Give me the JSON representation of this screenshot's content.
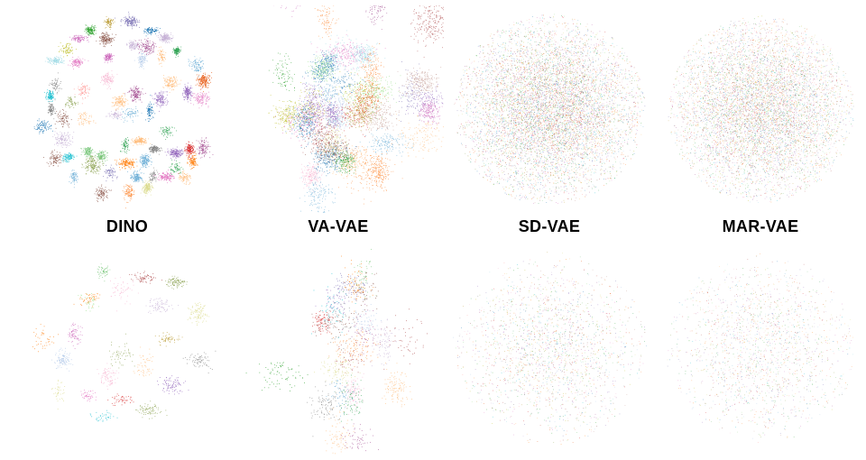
{
  "figure": {
    "background": "#ffffff",
    "palette": [
      "#1f77b4",
      "#aec7e8",
      "#ff7f0e",
      "#ffbb78",
      "#2ca02c",
      "#98df8a",
      "#d62728",
      "#ff9896",
      "#9467bd",
      "#c5b0d5",
      "#8c564b",
      "#c49c94",
      "#e377c2",
      "#f7b6d2",
      "#7f7f7f",
      "#bcbd22",
      "#dbdb8d",
      "#17becf",
      "#9edae5",
      "#e6550d",
      "#6baed6",
      "#74c476",
      "#fd8d3c",
      "#ad494a",
      "#8ca252",
      "#bd9e39",
      "#a55194",
      "#ce6dbd",
      "#31a354",
      "#756bb1"
    ],
    "columns": [
      {
        "label": "DINO"
      },
      {
        "label": "VA-VAE"
      },
      {
        "label": "SD-VAE"
      },
      {
        "label": "MAR-VAE"
      }
    ]
  },
  "chart_data": [
    {
      "type": "scatter",
      "row": "top",
      "panel_label": "DINO",
      "structure": "clusters",
      "description": "t-SNE of DINO features: many compact, well-separated class clusters, each a distinct color",
      "clusters": 62,
      "points": 7400,
      "cluster_sigma": 0.013,
      "layout_radius": 0.43,
      "min_sep": 0.06,
      "seed": 7,
      "point_size": 1.6,
      "alpha": 0.95
    },
    {
      "type": "scatter",
      "row": "top",
      "panel_label": "VA-VAE",
      "structure": "macro-clusters",
      "description": "t-SNE of VA-VAE latents: partially separated colored clusters merged into several large lobes",
      "macro_blobs": 6,
      "macro_radius": 0.26,
      "macro_min_sep": 0.18,
      "blob_spread": 0.11,
      "clusters": 46,
      "points": 7800,
      "cluster_sigma": 0.034,
      "seed": 13,
      "point_size": 1.5,
      "alpha": 0.85
    },
    {
      "type": "scatter",
      "row": "top",
      "panel_label": "SD-VAE",
      "structure": "diffuse",
      "description": "t-SNE of SD-VAE latents: one large diffuse blob, classes fully mixed",
      "points": 8200,
      "sigma": 0.205,
      "clip": 0.46,
      "seed": 21,
      "point_size": 1.4,
      "alpha": 0.7
    },
    {
      "type": "scatter",
      "row": "top",
      "panel_label": "MAR-VAE",
      "structure": "diffuse",
      "description": "t-SNE of MAR-VAE latents: one large diffuse blob, classes fully mixed",
      "points": 7600,
      "sigma": 0.21,
      "clip": 0.45,
      "seed": 29,
      "point_size": 1.4,
      "alpha": 0.65
    },
    {
      "type": "scatter",
      "row": "bottom",
      "panel_label": "DINO",
      "structure": "clusters",
      "description": "Sparser subset: small tight multicolored clusters scattered over the panel",
      "clusters": 22,
      "points": 1500,
      "cluster_sigma": 0.02,
      "layout_radius": 0.4,
      "min_sep": 0.12,
      "seed": 37,
      "point_size": 1.6,
      "alpha": 0.9
    },
    {
      "type": "scatter",
      "row": "bottom",
      "panel_label": "VA-VAE",
      "structure": "macro-clusters",
      "description": "Sparser subset: loose colored clusters grouped into a few lobes",
      "macro_blobs": 5,
      "macro_radius": 0.26,
      "macro_min_sep": 0.18,
      "blob_spread": 0.1,
      "clusters": 24,
      "points": 1900,
      "cluster_sigma": 0.035,
      "seed": 43,
      "point_size": 1.6,
      "alpha": 0.85
    },
    {
      "type": "scatter",
      "row": "bottom",
      "panel_label": "SD-VAE",
      "structure": "diffuse",
      "description": "Sparser subset: pale diffuse blob with mixed colors",
      "points": 2100,
      "sigma": 0.21,
      "clip": 0.46,
      "seed": 51,
      "point_size": 1.5,
      "alpha": 0.6
    },
    {
      "type": "scatter",
      "row": "bottom",
      "panel_label": "MAR-VAE",
      "structure": "diffuse",
      "description": "Sparser subset: pale diffuse blob with mixed colors",
      "points": 1900,
      "sigma": 0.215,
      "clip": 0.45,
      "seed": 57,
      "point_size": 1.5,
      "alpha": 0.55
    }
  ]
}
